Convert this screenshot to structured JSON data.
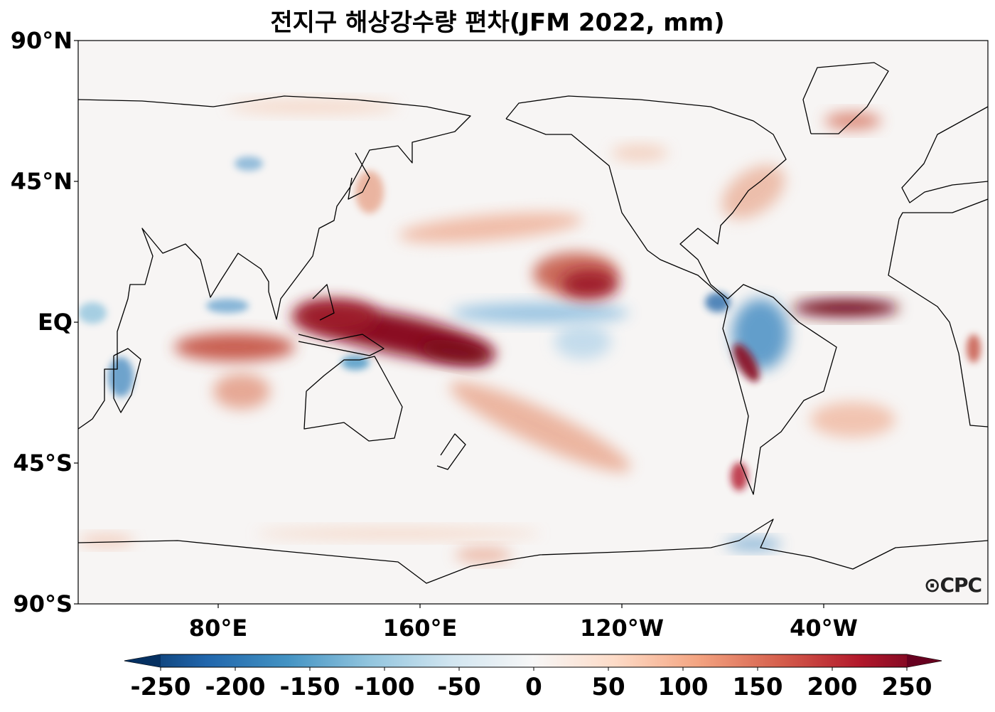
{
  "title": "전지구 해상강수량 편차(JFM 2022, mm)",
  "lat_labels": [
    "90°N",
    "45°N",
    "EQ",
    "45°S",
    "90°S"
  ],
  "lon_labels": [
    "80°E",
    "160°E",
    "120°W",
    "40°W"
  ],
  "colorbar": {
    "ticks": [
      "-250",
      "-200",
      "-150",
      "-100",
      "-50",
      "0",
      "50",
      "100",
      "150",
      "200",
      "250"
    ],
    "range": [
      -250,
      250
    ],
    "extend": "both",
    "colors": [
      "#053061",
      "#2166ac",
      "#4393c3",
      "#92c5de",
      "#d1e5f0",
      "#f7f7f7",
      "#fddbc7",
      "#f4a582",
      "#d6604d",
      "#b2182b",
      "#67001f"
    ]
  },
  "logo": "CPC"
}
